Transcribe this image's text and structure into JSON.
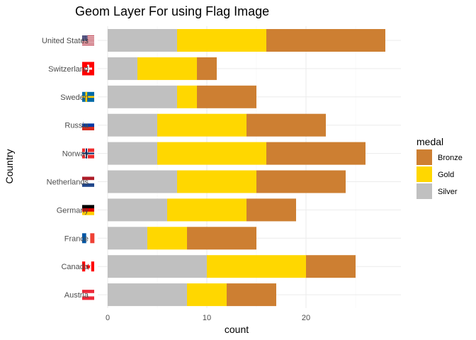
{
  "chart_data": {
    "type": "bar",
    "orientation": "horizontal",
    "stacked": true,
    "title": "Geom Layer For using Flag Image",
    "xlabel": "count",
    "ylabel": "Country",
    "xlim": [
      0,
      28
    ],
    "x_ticks": [
      0,
      10,
      20
    ],
    "categories": [
      "Austria",
      "Canada",
      "France",
      "Germany",
      "Netherlands",
      "Norway",
      "Russia",
      "Sweden",
      "Switzerland",
      "United States"
    ],
    "series": [
      {
        "name": "Silver",
        "color": "#C0C0C0",
        "values": [
          8,
          10,
          4,
          6,
          7,
          5,
          5,
          7,
          3,
          7
        ]
      },
      {
        "name": "Gold",
        "color": "#FFD700",
        "values": [
          4,
          10,
          4,
          8,
          8,
          11,
          9,
          2,
          6,
          9
        ]
      },
      {
        "name": "Bronze",
        "color": "#CD7F32",
        "values": [
          5,
          5,
          7,
          5,
          9,
          10,
          8,
          6,
          2,
          12
        ]
      }
    ],
    "legend": {
      "title": "medal",
      "position": "right",
      "entries": [
        "Bronze",
        "Gold",
        "Silver"
      ]
    },
    "grid": true,
    "flags": [
      {
        "country": "Austria",
        "icon": "austria-flag-icon",
        "kind": "h",
        "colors": [
          "#ED2939",
          "#FFFFFF",
          "#ED2939"
        ]
      },
      {
        "country": "Canada",
        "icon": "canada-flag-icon",
        "kind": "canada",
        "colors": [
          "#FF0000",
          "#FFFFFF",
          "#FF0000"
        ]
      },
      {
        "country": "France",
        "icon": "france-flag-icon",
        "kind": "v",
        "colors": [
          "#0055A4",
          "#FFFFFF",
          "#EF4135"
        ]
      },
      {
        "country": "Germany",
        "icon": "germany-flag-icon",
        "kind": "h",
        "colors": [
          "#000000",
          "#DD0000",
          "#FFCE00"
        ]
      },
      {
        "country": "Netherlands",
        "icon": "netherlands-flag-icon",
        "kind": "h",
        "colors": [
          "#AE1C28",
          "#FFFFFF",
          "#21468B"
        ]
      },
      {
        "country": "Norway",
        "icon": "norway-flag-icon",
        "kind": "nordic",
        "colors": [
          "#EF2B2D",
          "#FFFFFF",
          "#002868"
        ]
      },
      {
        "country": "Russia",
        "icon": "russia-flag-icon",
        "kind": "h",
        "colors": [
          "#FFFFFF",
          "#0039A6",
          "#D52B1E"
        ]
      },
      {
        "country": "Sweden",
        "icon": "sweden-flag-icon",
        "kind": "nordic",
        "colors": [
          "#006AA7",
          "#FECC00",
          "#FECC00"
        ]
      },
      {
        "country": "Switzerland",
        "icon": "switzerland-flag-icon",
        "kind": "swiss",
        "colors": [
          "#FF0000",
          "#FFFFFF",
          "#FF0000"
        ]
      },
      {
        "country": "United States",
        "icon": "united-states-flag-icon",
        "kind": "usa",
        "colors": [
          "#B22234",
          "#FFFFFF",
          "#3C3B6E"
        ]
      }
    ]
  }
}
